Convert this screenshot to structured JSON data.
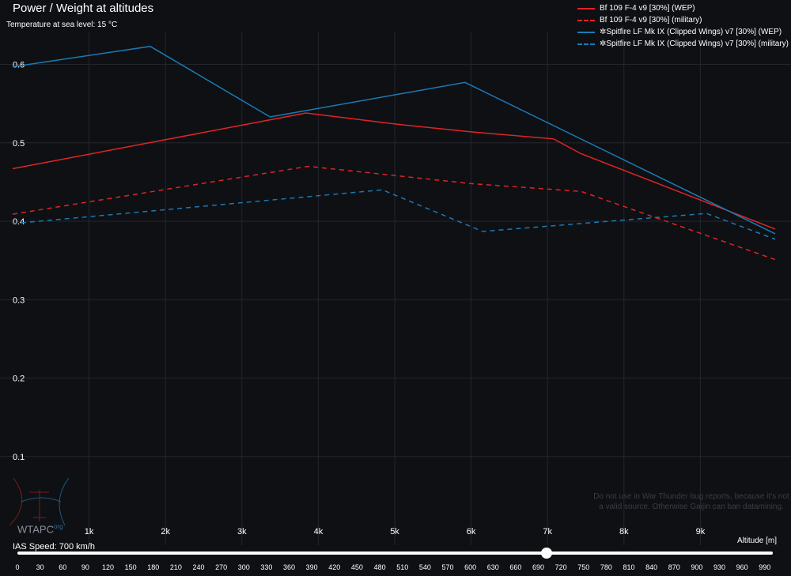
{
  "header": {
    "title": "Power / Weight at altitudes",
    "temperature": "Temperature at sea level: 15 °C"
  },
  "watermark": {
    "logo": "WTAPC",
    "logo_sup": "org",
    "warning": "Do not use in War Thunder bug reports, because it's not a valid source. Otherwise Gaijin can ban datamining."
  },
  "slider": {
    "label": "IAS Speed: 700 km/h",
    "value": 700,
    "min": 0,
    "max": 1000,
    "ticks": [
      "0",
      "30",
      "60",
      "90",
      "120",
      "150",
      "180",
      "210",
      "240",
      "270",
      "300",
      "330",
      "360",
      "390",
      "420",
      "450",
      "480",
      "510",
      "540",
      "570",
      "600",
      "630",
      "660",
      "690",
      "720",
      "750",
      "780",
      "810",
      "840",
      "870",
      "900",
      "930",
      "960",
      "990"
    ]
  },
  "chart_data": {
    "type": "line",
    "title": "Power / Weight at altitudes",
    "xlabel": "Altitude [m]",
    "ylabel": "",
    "xlim": [
      -1000,
      10000
    ],
    "ylim": [
      0,
      0.6
    ],
    "xticks": [
      {
        "v": 1000,
        "label": "1k"
      },
      {
        "v": 2000,
        "label": "2k"
      },
      {
        "v": 3000,
        "label": "3k"
      },
      {
        "v": 4000,
        "label": "4k"
      },
      {
        "v": 5000,
        "label": "5k"
      },
      {
        "v": 6000,
        "label": "6k"
      },
      {
        "v": 7000,
        "label": "7k"
      },
      {
        "v": 8000,
        "label": "8k"
      },
      {
        "v": 9000,
        "label": "9k"
      }
    ],
    "yticks": [
      {
        "v": 0.1,
        "label": "0.1"
      },
      {
        "v": 0.2,
        "label": "0.2"
      },
      {
        "v": 0.3,
        "label": "0.3"
      },
      {
        "v": 0.4,
        "label": "0.4"
      },
      {
        "v": 0.5,
        "label": "0.5"
      },
      {
        "v": 0.6,
        "label": "0.6"
      }
    ],
    "grid": true,
    "legend_position": "top-right",
    "series": [
      {
        "name": "Bf 109 F-4 v9 [30%] (WEP)",
        "color": "#e02424",
        "dash": false,
        "x": [
          0,
          3840,
          5000,
          6000,
          7080,
          7440,
          9980
        ],
        "y": [
          0.467,
          0.538,
          0.524,
          0.514,
          0.505,
          0.486,
          0.39
        ]
      },
      {
        "name": "Bf 109 F-4 v9 [30%] (military)",
        "color": "#e02424",
        "dash": true,
        "x": [
          0,
          3870,
          6000,
          7440,
          9980
        ],
        "y": [
          0.409,
          0.47,
          0.448,
          0.438,
          0.351
        ]
      },
      {
        "name": "✲Spitfire LF Mk IX (Clipped Wings) v7 [30%] (WEP)",
        "color": "#1a7ab5",
        "dash": false,
        "x": [
          0,
          1800,
          3370,
          5920,
          9980
        ],
        "y": [
          0.597,
          0.623,
          0.533,
          0.577,
          0.384
        ]
      },
      {
        "name": "✲Spitfire LF Mk IX (Clipped Wings) v7 [30%] (military)",
        "color": "#1a7ab5",
        "dash": true,
        "x": [
          0,
          4840,
          6150,
          9080,
          9980
        ],
        "y": [
          0.397,
          0.44,
          0.387,
          0.41,
          0.377
        ]
      }
    ]
  }
}
